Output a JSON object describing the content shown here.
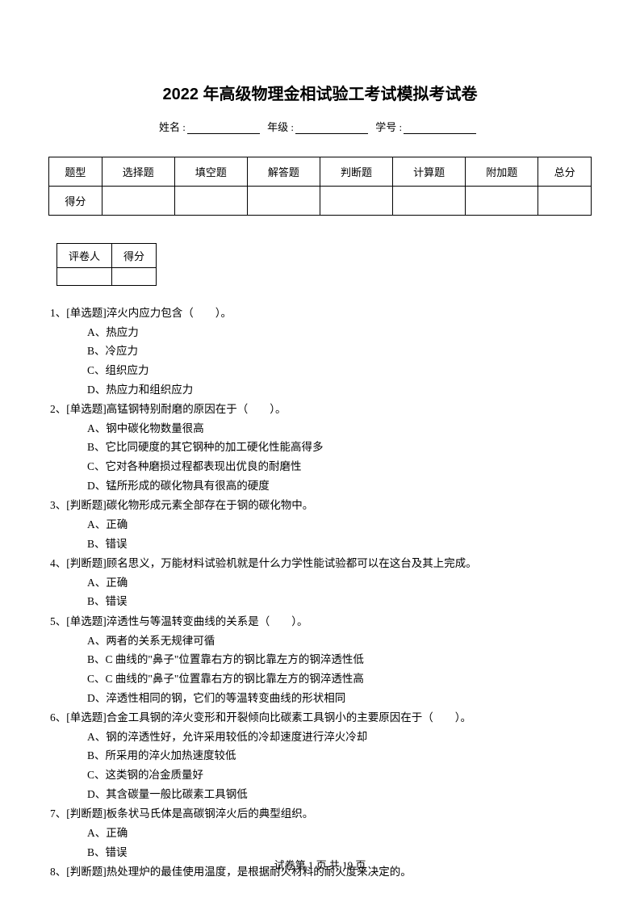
{
  "title": "2022 年高级物理金相试验工考试模拟考试卷",
  "info": {
    "name_label": "姓名 :",
    "grade_label": "年级 :",
    "id_label": "学号 :"
  },
  "score_table": {
    "headers": [
      "题型",
      "选择题",
      "填空题",
      "解答题",
      "判断题",
      "计算题",
      "附加题",
      "总分"
    ],
    "row_label": "得分"
  },
  "grader_table": {
    "headers": [
      "评卷人",
      "得分"
    ]
  },
  "questions": [
    {
      "num": "1、",
      "stem": "[单选题]淬火内应力包含（　　）。",
      "options": [
        "A、热应力",
        "B、冷应力",
        "C、组织应力",
        "D、热应力和组织应力"
      ]
    },
    {
      "num": "2、",
      "stem": "[单选题]高锰钢特别耐磨的原因在于（　　）。",
      "options": [
        "A、钢中碳化物数量很高",
        "B、它比同硬度的其它钢种的加工硬化性能高得多",
        "C、它对各种磨损过程都表现出优良的耐磨性",
        "D、锰所形成的碳化物具有很高的硬度"
      ]
    },
    {
      "num": "3、",
      "stem": "[判断题]碳化物形成元素全部存在于钢的碳化物中。",
      "options": [
        "A、正确",
        "B、错误"
      ]
    },
    {
      "num": "4、",
      "stem": "[判断题]顾名思义，万能材料试验机就是什么力学性能试验都可以在这台及其上完成。",
      "options": [
        "A、正确",
        "B、错误"
      ]
    },
    {
      "num": "5、",
      "stem": "[单选题]淬透性与等温转变曲线的关系是（　　）。",
      "options": [
        "A、两者的关系无规律可循",
        "B、C 曲线的\"鼻子\"位置靠右方的钢比靠左方的钢淬透性低",
        "C、C 曲线的\"鼻子\"位置靠右方的钢比靠左方的钢淬透性高",
        "D、淬透性相同的钢，它们的等温转变曲线的形状相同"
      ]
    },
    {
      "num": "6、",
      "stem": "[单选题]合金工具钢的淬火变形和开裂倾向比碳素工具钢小的主要原因在于（　　）。",
      "options": [
        "A、钢的淬透性好，允许采用较低的冷却速度进行淬火冷却",
        "B、所采用的淬火加热速度较低",
        "C、这类钢的冶金质量好",
        "D、其含碳量一般比碳素工具钢低"
      ]
    },
    {
      "num": "7、",
      "stem": "[判断题]板条状马氏体是高碳钢淬火后的典型组织。",
      "options": [
        "A、正确",
        "B、错误"
      ]
    },
    {
      "num": "8、",
      "stem": "[判断题]热处理炉的最佳使用温度，是根据耐火材料的耐火度来决定的。",
      "options": []
    }
  ],
  "footer": {
    "text_prefix": "试卷第 ",
    "page_current": "1",
    "text_middle": " 页 共 ",
    "page_total": "19",
    "text_suffix": " 页"
  }
}
